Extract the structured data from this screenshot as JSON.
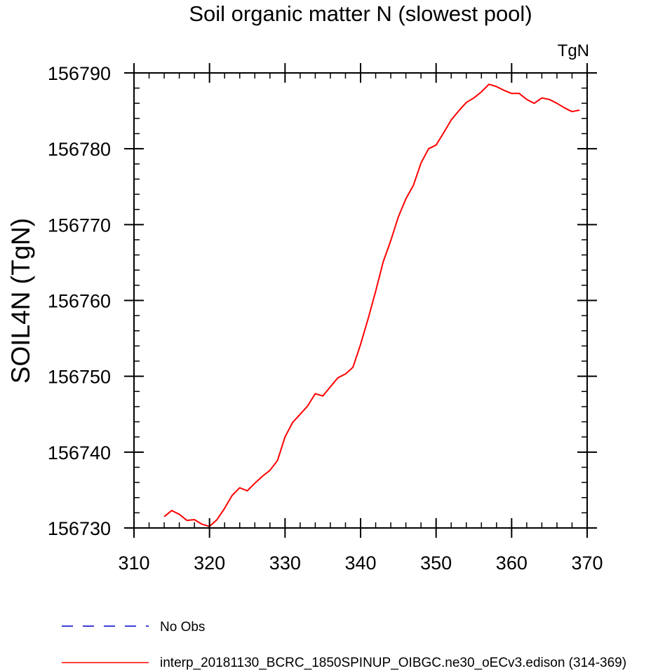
{
  "chart_data": {
    "type": "line",
    "title": "Soil organic matter N (slowest pool)",
    "units": "TgN",
    "xlabel": "",
    "ylabel": "SOIL4N  (TgN)",
    "xlim": [
      310,
      370
    ],
    "ylim": [
      156730,
      156790
    ],
    "xticks": [
      310,
      320,
      330,
      340,
      350,
      360,
      370
    ],
    "yticks": [
      156730,
      156740,
      156750,
      156760,
      156770,
      156780,
      156790
    ],
    "x_minor_step": 2,
    "y_minor_step": 2,
    "grid": false,
    "legend_position": "bottom-left",
    "series": [
      {
        "name": "No Obs",
        "color": "#0000cc",
        "style": "dashed",
        "x": [],
        "y": []
      },
      {
        "name": "interp_20181130_BCRC_1850SPINUP_OIBGC.ne30_oECv3.edison (314-369)",
        "color": "#ff0000",
        "style": "solid",
        "x": [
          314,
          315,
          316,
          317,
          318,
          319,
          320,
          321,
          322,
          323,
          324,
          325,
          326,
          327,
          328,
          329,
          330,
          331,
          332,
          333,
          334,
          335,
          336,
          337,
          338,
          339,
          340,
          341,
          342,
          343,
          344,
          345,
          346,
          347,
          348,
          349,
          350,
          351,
          352,
          353,
          354,
          355,
          356,
          357,
          358,
          359,
          360,
          361,
          362,
          363,
          364,
          365,
          366,
          367,
          368,
          369
        ],
        "y": [
          156731.5,
          156732.3,
          156731.8,
          156731.0,
          156731.1,
          156730.5,
          156730.2,
          156731.1,
          156732.6,
          156734.3,
          156735.3,
          156734.9,
          156735.9,
          156736.8,
          156737.6,
          156738.9,
          156742.0,
          156743.9,
          156745.0,
          156746.1,
          156747.7,
          156747.4,
          156748.6,
          156749.8,
          156750.3,
          156751.2,
          156754.2,
          156757.6,
          156761.2,
          156765.1,
          156767.9,
          156771.0,
          156773.4,
          156775.2,
          156778.1,
          156780.0,
          156780.5,
          156782.1,
          156783.8,
          156785.0,
          156786.1,
          156786.7,
          156787.5,
          156788.5,
          156788.2,
          156787.7,
          156787.3,
          156787.3,
          156786.5,
          156786.0,
          156786.7,
          156786.5,
          156786.0,
          156785.4,
          156784.9,
          156785.1
        ]
      }
    ]
  }
}
